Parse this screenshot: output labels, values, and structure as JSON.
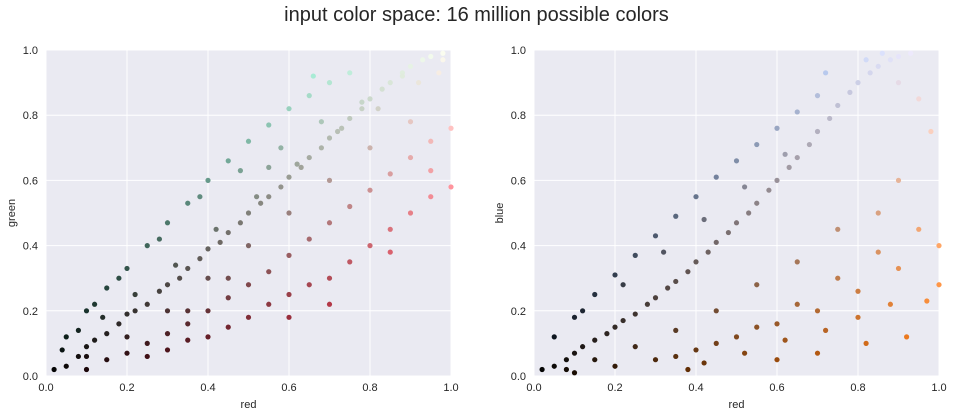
{
  "suptitle": "input color space: 16 million possible colors",
  "colors": {
    "plot_background": "#EAEAF2",
    "grid": "#FFFFFF",
    "text": "#262626"
  },
  "chart_data": [
    {
      "type": "scatter",
      "title": "",
      "xlabel": "red",
      "ylabel": "green",
      "xlim": [
        0,
        1
      ],
      "ylim": [
        0,
        1
      ],
      "grid": true,
      "xticks": [
        "0.0",
        "0.2",
        "0.4",
        "0.6",
        "0.8",
        "1.0"
      ],
      "yticks": [
        "0.0",
        "0.2",
        "0.4",
        "0.6",
        "0.8",
        "1.0"
      ],
      "point_color": "rgb of each sampled pixel",
      "points": [
        [
          0.02,
          0.02
        ],
        [
          0.05,
          0.03
        ],
        [
          0.08,
          0.06
        ],
        [
          0.1,
          0.09
        ],
        [
          0.12,
          0.11
        ],
        [
          0.15,
          0.13
        ],
        [
          0.18,
          0.16
        ],
        [
          0.2,
          0.19
        ],
        [
          0.22,
          0.2
        ],
        [
          0.25,
          0.22
        ],
        [
          0.28,
          0.26
        ],
        [
          0.3,
          0.28
        ],
        [
          0.33,
          0.3
        ],
        [
          0.35,
          0.33
        ],
        [
          0.38,
          0.36
        ],
        [
          0.4,
          0.39
        ],
        [
          0.43,
          0.41
        ],
        [
          0.45,
          0.44
        ],
        [
          0.48,
          0.47
        ],
        [
          0.5,
          0.5
        ],
        [
          0.53,
          0.53
        ],
        [
          0.55,
          0.55
        ],
        [
          0.58,
          0.58
        ],
        [
          0.6,
          0.61
        ],
        [
          0.63,
          0.64
        ],
        [
          0.65,
          0.67
        ],
        [
          0.68,
          0.7
        ],
        [
          0.7,
          0.73
        ],
        [
          0.73,
          0.76
        ],
        [
          0.75,
          0.79
        ],
        [
          0.78,
          0.82
        ],
        [
          0.8,
          0.85
        ],
        [
          0.83,
          0.88
        ],
        [
          0.85,
          0.9
        ],
        [
          0.88,
          0.93
        ],
        [
          0.9,
          0.95
        ],
        [
          0.93,
          0.97
        ],
        [
          0.95,
          0.98
        ],
        [
          0.98,
          0.99
        ],
        [
          0.05,
          0.12
        ],
        [
          0.1,
          0.2
        ],
        [
          0.15,
          0.27
        ],
        [
          0.2,
          0.33
        ],
        [
          0.25,
          0.4
        ],
        [
          0.3,
          0.47
        ],
        [
          0.35,
          0.53
        ],
        [
          0.4,
          0.6
        ],
        [
          0.45,
          0.66
        ],
        [
          0.5,
          0.72
        ],
        [
          0.55,
          0.77
        ],
        [
          0.6,
          0.82
        ],
        [
          0.65,
          0.86
        ],
        [
          0.7,
          0.9
        ],
        [
          0.75,
          0.93
        ],
        [
          0.1,
          0.02
        ],
        [
          0.15,
          0.05
        ],
        [
          0.2,
          0.07
        ],
        [
          0.25,
          0.1
        ],
        [
          0.3,
          0.13
        ],
        [
          0.35,
          0.16
        ],
        [
          0.4,
          0.2
        ],
        [
          0.45,
          0.24
        ],
        [
          0.5,
          0.28
        ],
        [
          0.55,
          0.32
        ],
        [
          0.6,
          0.37
        ],
        [
          0.65,
          0.42
        ],
        [
          0.7,
          0.47
        ],
        [
          0.75,
          0.52
        ],
        [
          0.8,
          0.57
        ],
        [
          0.85,
          0.62
        ],
        [
          0.9,
          0.67
        ],
        [
          0.95,
          0.72
        ],
        [
          1.0,
          0.76
        ],
        [
          0.3,
          0.08
        ],
        [
          0.4,
          0.12
        ],
        [
          0.5,
          0.18
        ],
        [
          0.6,
          0.25
        ],
        [
          0.7,
          0.3
        ],
        [
          0.8,
          0.4
        ],
        [
          0.9,
          0.5
        ],
        [
          1.0,
          0.58
        ],
        [
          0.25,
          0.06
        ],
        [
          0.35,
          0.11
        ],
        [
          0.45,
          0.15
        ],
        [
          0.55,
          0.22
        ],
        [
          0.65,
          0.28
        ],
        [
          0.75,
          0.35
        ],
        [
          0.85,
          0.45
        ],
        [
          0.95,
          0.55
        ],
        [
          0.12,
          0.22
        ],
        [
          0.18,
          0.3
        ],
        [
          0.28,
          0.42
        ],
        [
          0.38,
          0.55
        ],
        [
          0.48,
          0.63
        ],
        [
          0.58,
          0.7
        ],
        [
          0.68,
          0.78
        ],
        [
          0.78,
          0.84
        ],
        [
          0.88,
          0.92
        ],
        [
          0.98,
          0.97
        ],
        [
          0.04,
          0.08
        ],
        [
          0.08,
          0.14
        ],
        [
          0.14,
          0.18
        ],
        [
          0.22,
          0.25
        ],
        [
          0.32,
          0.34
        ],
        [
          0.42,
          0.45
        ],
        [
          0.52,
          0.55
        ],
        [
          0.62,
          0.65
        ],
        [
          0.72,
          0.75
        ],
        [
          0.82,
          0.82
        ],
        [
          0.92,
          0.9
        ],
        [
          0.97,
          0.93
        ],
        [
          0.66,
          0.92
        ],
        [
          0.55,
          0.64
        ],
        [
          0.45,
          0.3
        ],
        [
          0.35,
          0.2
        ],
        [
          0.6,
          0.18
        ],
        [
          0.7,
          0.22
        ],
        [
          0.85,
          0.38
        ],
        [
          0.95,
          0.63
        ],
        [
          0.9,
          0.78
        ],
        [
          0.8,
          0.7
        ],
        [
          0.7,
          0.6
        ],
        [
          0.6,
          0.5
        ],
        [
          0.5,
          0.4
        ],
        [
          0.4,
          0.3
        ],
        [
          0.3,
          0.2
        ],
        [
          0.2,
          0.12
        ],
        [
          0.1,
          0.06
        ]
      ]
    },
    {
      "type": "scatter",
      "title": "",
      "xlabel": "red",
      "ylabel": "blue",
      "xlim": [
        0,
        1
      ],
      "ylim": [
        0,
        1
      ],
      "grid": true,
      "xticks": [
        "0.0",
        "0.2",
        "0.4",
        "0.6",
        "0.8",
        "1.0"
      ],
      "yticks": [
        "0.0",
        "0.2",
        "0.4",
        "0.6",
        "0.8",
        "1.0"
      ],
      "point_color": "rgb of each sampled pixel",
      "points": [
        [
          0.02,
          0.02
        ],
        [
          0.05,
          0.03
        ],
        [
          0.08,
          0.05
        ],
        [
          0.1,
          0.07
        ],
        [
          0.12,
          0.09
        ],
        [
          0.15,
          0.11
        ],
        [
          0.18,
          0.13
        ],
        [
          0.2,
          0.15
        ],
        [
          0.22,
          0.17
        ],
        [
          0.25,
          0.19
        ],
        [
          0.28,
          0.22
        ],
        [
          0.3,
          0.24
        ],
        [
          0.33,
          0.27
        ],
        [
          0.35,
          0.29
        ],
        [
          0.38,
          0.32
        ],
        [
          0.4,
          0.35
        ],
        [
          0.43,
          0.38
        ],
        [
          0.45,
          0.41
        ],
        [
          0.48,
          0.44
        ],
        [
          0.5,
          0.47
        ],
        [
          0.53,
          0.5
        ],
        [
          0.55,
          0.53
        ],
        [
          0.58,
          0.57
        ],
        [
          0.6,
          0.6
        ],
        [
          0.63,
          0.64
        ],
        [
          0.65,
          0.67
        ],
        [
          0.68,
          0.71
        ],
        [
          0.7,
          0.75
        ],
        [
          0.73,
          0.79
        ],
        [
          0.75,
          0.83
        ],
        [
          0.78,
          0.87
        ],
        [
          0.8,
          0.9
        ],
        [
          0.83,
          0.93
        ],
        [
          0.85,
          0.95
        ],
        [
          0.88,
          0.97
        ],
        [
          0.9,
          0.98
        ],
        [
          0.93,
          0.99
        ],
        [
          0.05,
          0.12
        ],
        [
          0.1,
          0.18
        ],
        [
          0.15,
          0.25
        ],
        [
          0.2,
          0.31
        ],
        [
          0.25,
          0.37
        ],
        [
          0.3,
          0.43
        ],
        [
          0.35,
          0.49
        ],
        [
          0.4,
          0.55
        ],
        [
          0.45,
          0.61
        ],
        [
          0.5,
          0.66
        ],
        [
          0.55,
          0.71
        ],
        [
          0.6,
          0.76
        ],
        [
          0.65,
          0.81
        ],
        [
          0.7,
          0.86
        ],
        [
          0.72,
          0.93
        ],
        [
          0.1,
          0.01
        ],
        [
          0.2,
          0.03
        ],
        [
          0.3,
          0.05
        ],
        [
          0.4,
          0.08
        ],
        [
          0.5,
          0.12
        ],
        [
          0.6,
          0.16
        ],
        [
          0.7,
          0.2
        ],
        [
          0.8,
          0.26
        ],
        [
          0.9,
          0.33
        ],
        [
          1.0,
          0.4
        ],
        [
          0.35,
          0.06
        ],
        [
          0.45,
          0.1
        ],
        [
          0.55,
          0.15
        ],
        [
          0.65,
          0.22
        ],
        [
          0.75,
          0.3
        ],
        [
          0.85,
          0.38
        ],
        [
          0.95,
          0.45
        ],
        [
          1.0,
          0.28
        ],
        [
          0.97,
          0.23
        ],
        [
          0.88,
          0.22
        ],
        [
          0.8,
          0.18
        ],
        [
          0.72,
          0.14
        ],
        [
          0.62,
          0.11
        ],
        [
          0.52,
          0.07
        ],
        [
          0.42,
          0.04
        ],
        [
          0.38,
          0.02
        ],
        [
          0.6,
          0.05
        ],
        [
          0.7,
          0.07
        ],
        [
          0.82,
          0.1
        ],
        [
          0.92,
          0.12
        ],
        [
          0.12,
          0.2
        ],
        [
          0.22,
          0.28
        ],
        [
          0.32,
          0.38
        ],
        [
          0.42,
          0.48
        ],
        [
          0.52,
          0.58
        ],
        [
          0.62,
          0.68
        ],
        [
          0.82,
          0.97
        ],
        [
          0.86,
          0.99
        ],
        [
          0.9,
          0.9
        ],
        [
          0.95,
          0.85
        ],
        [
          0.98,
          0.75
        ],
        [
          0.9,
          0.6
        ],
        [
          0.85,
          0.5
        ],
        [
          0.75,
          0.45
        ],
        [
          0.65,
          0.35
        ],
        [
          0.55,
          0.28
        ],
        [
          0.45,
          0.2
        ],
        [
          0.35,
          0.14
        ],
        [
          0.25,
          0.09
        ],
        [
          0.15,
          0.05
        ],
        [
          0.08,
          0.02
        ]
      ]
    }
  ]
}
